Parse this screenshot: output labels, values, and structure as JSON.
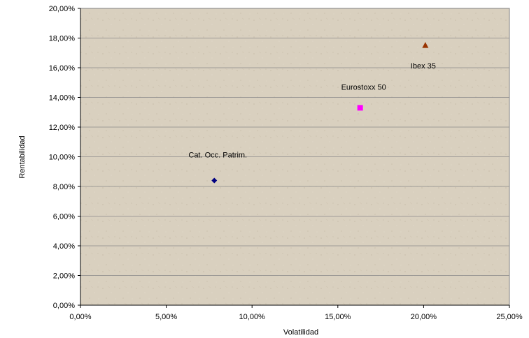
{
  "chart_data": {
    "type": "scatter",
    "xlabel": "Volatilidad",
    "ylabel": "Rentabilidad",
    "xlim": [
      0,
      25
    ],
    "ylim": [
      0,
      20
    ],
    "x_ticks": [
      "0,00%",
      "5,00%",
      "10,00%",
      "15,00%",
      "20,00%",
      "25,00%"
    ],
    "y_ticks": [
      "0,00%",
      "2,00%",
      "4,00%",
      "6,00%",
      "8,00%",
      "10,00%",
      "12,00%",
      "14,00%",
      "16,00%",
      "18,00%",
      "20,00%"
    ],
    "grid": "horizontal",
    "series": [
      {
        "name": "Cat. Occ. Patrim.",
        "x": 7.8,
        "y": 8.4,
        "marker": "diamond",
        "color": "#000080"
      },
      {
        "name": "Eurostoxx 50",
        "x": 16.3,
        "y": 13.3,
        "marker": "square",
        "color": "#ff00ff"
      },
      {
        "name": "Ibex 35",
        "x": 20.1,
        "y": 17.5,
        "marker": "triangle",
        "color": "#993300"
      }
    ]
  },
  "colors": {
    "plot_background": "#d8cfbd",
    "gridline": "#8a8a8a"
  }
}
